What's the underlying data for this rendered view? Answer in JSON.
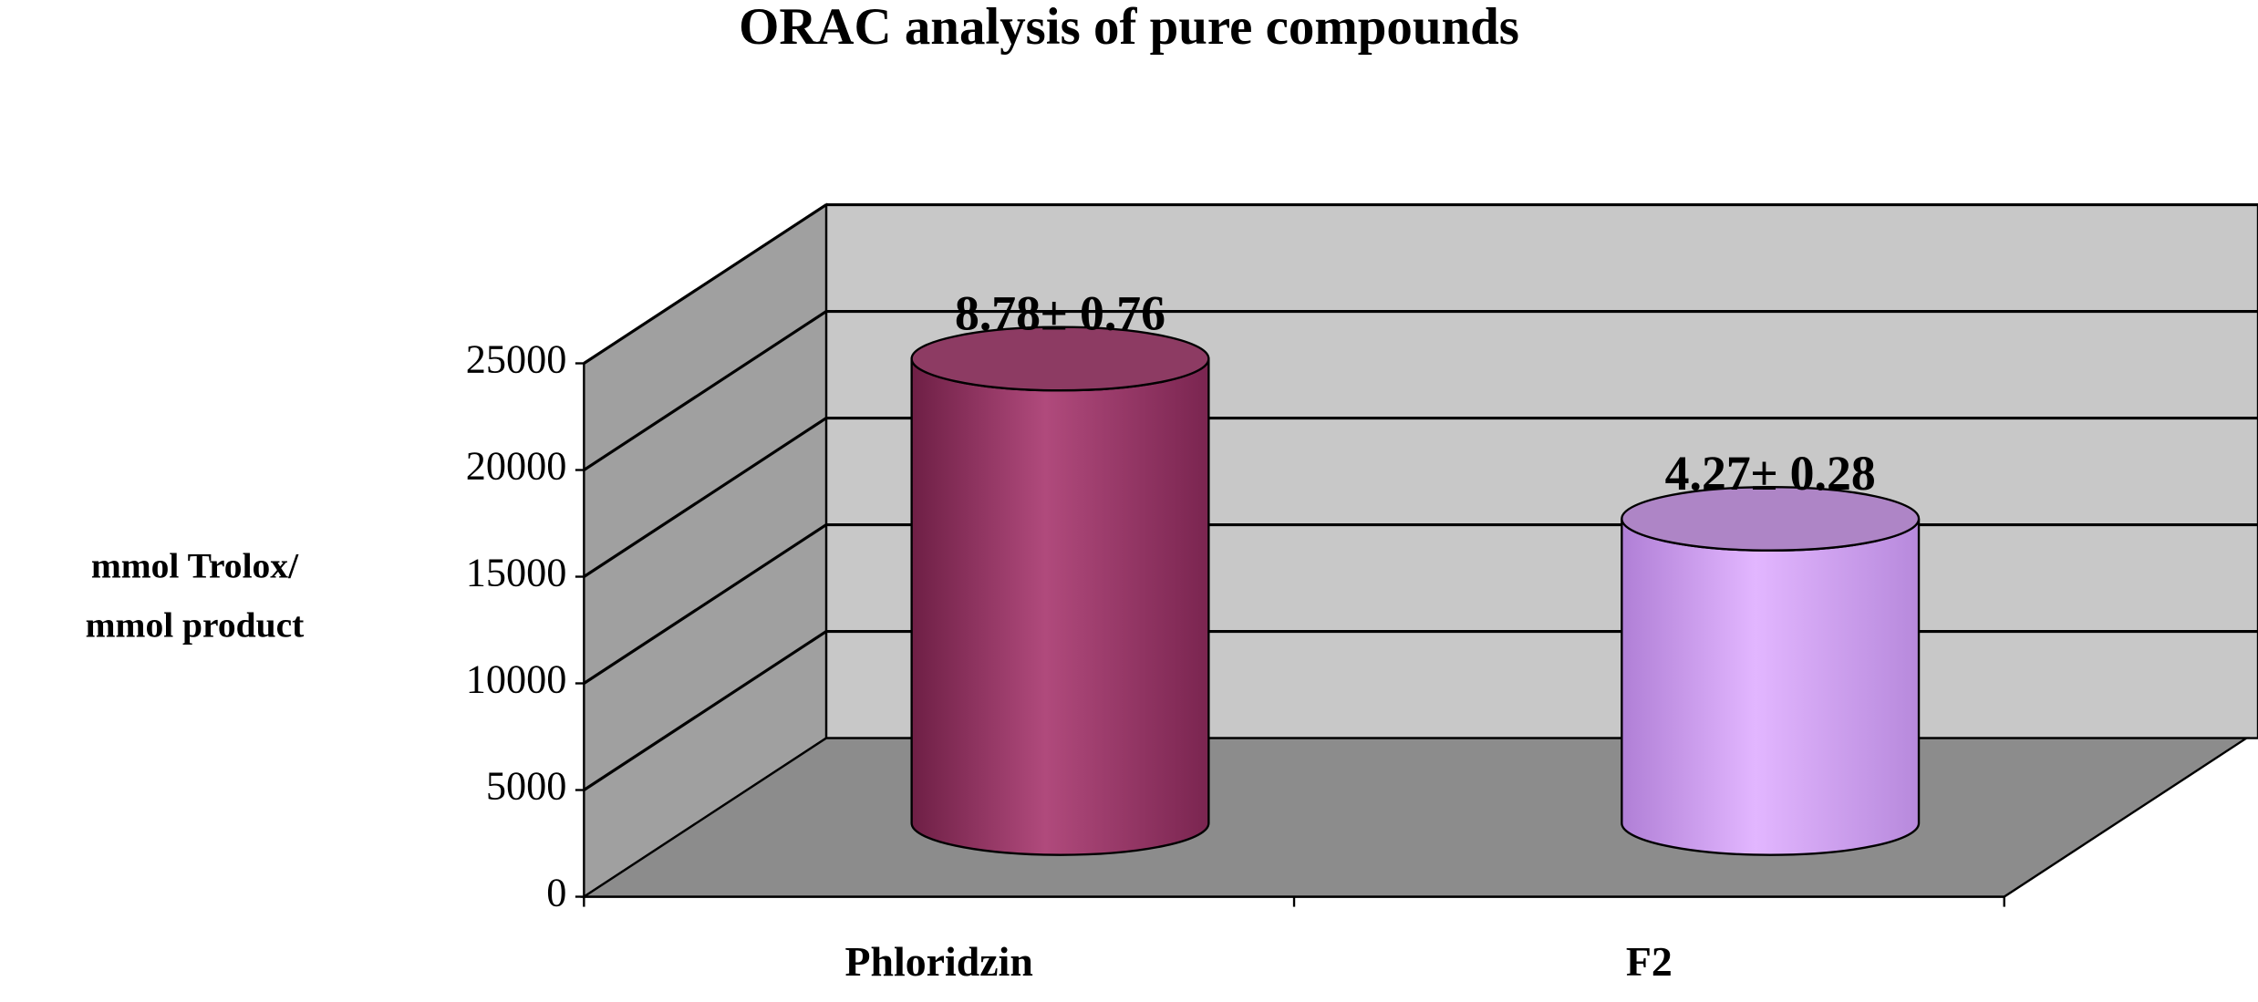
{
  "chart_data": {
    "type": "bar3d",
    "title": "ORAC analysis of pure compounds",
    "ylabel": [
      "mmol Trolox/",
      "mmol product"
    ],
    "categories": [
      "Phloridzin",
      "F2"
    ],
    "values": [
      21500,
      14000
    ],
    "colors": [
      "#b04a7c",
      "#d9a6f7"
    ],
    "annotations": [
      "8.78± 0.76",
      "4.27± 0.28"
    ],
    "ylim": [
      0,
      25000
    ],
    "yticks": [
      0,
      5000,
      10000,
      15000,
      20000,
      25000
    ],
    "grid": true
  }
}
